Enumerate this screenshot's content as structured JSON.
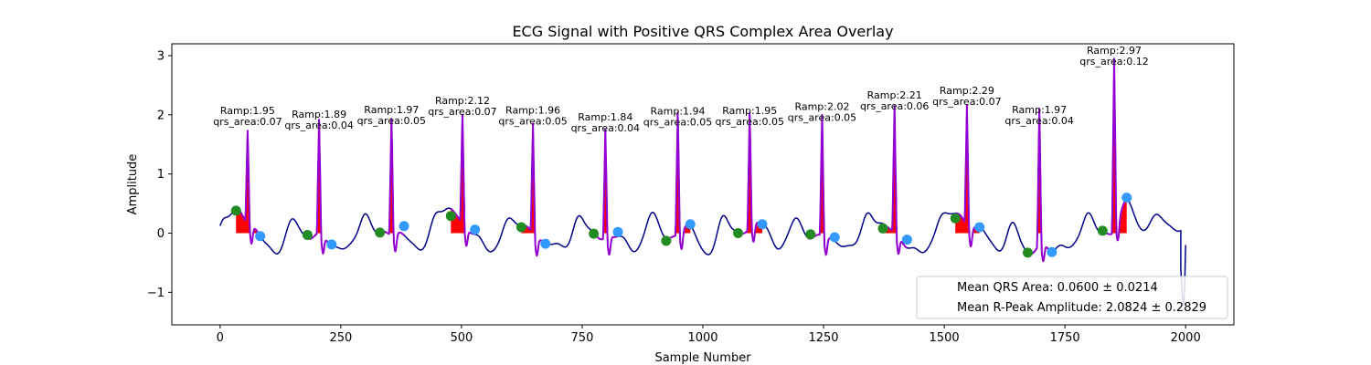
{
  "chart_data": {
    "type": "line",
    "title": "ECG Signal with Positive QRS Complex Area Overlay",
    "xlabel": "Sample Number",
    "ylabel": "Amplitude",
    "xlim": [
      -100,
      2100
    ],
    "ylim": [
      -1.55,
      3.2
    ],
    "xticks": [
      0,
      250,
      500,
      750,
      1000,
      1250,
      1500,
      1750,
      2000
    ],
    "yticks": [
      -1,
      0,
      1,
      2,
      3
    ],
    "xtick_labels": [
      "0",
      "250",
      "500",
      "750",
      "1000",
      "1250",
      "1500",
      "1750",
      "2000"
    ],
    "ytick_labels": [
      "−1",
      "0",
      "1",
      "2",
      "3"
    ],
    "colors": {
      "signal": "#00008b",
      "qrs_segment": "#9400d3",
      "qrs_area": "#ff0000",
      "onset_marker": "#228b22",
      "offset_marker": "#3399ff"
    },
    "beats": [
      {
        "r_sample": 57,
        "r_amp": 1.95,
        "onset": [
          33,
          0.38
        ],
        "offset": [
          83,
          -0.05
        ],
        "label_line1": "Ramp:1.95",
        "label_line2": "qrs_area:0.07"
      },
      {
        "r_sample": 205,
        "r_amp": 1.89,
        "onset": [
          181,
          -0.03
        ],
        "offset": [
          231,
          -0.19
        ],
        "label_line1": "Ramp:1.89",
        "label_line2": "qrs_area:0.04"
      },
      {
        "r_sample": 355,
        "r_amp": 1.97,
        "onset": [
          331,
          0.01
        ],
        "offset": [
          381,
          0.12
        ],
        "label_line1": "Ramp:1.97",
        "label_line2": "qrs_area:0.05"
      },
      {
        "r_sample": 502,
        "r_amp": 2.12,
        "onset": [
          478,
          0.29
        ],
        "offset": [
          528,
          0.06
        ],
        "label_line1": "Ramp:2.12",
        "label_line2": "qrs_area:0.07"
      },
      {
        "r_sample": 648,
        "r_amp": 1.96,
        "onset": [
          624,
          0.1
        ],
        "offset": [
          674,
          -0.18
        ],
        "label_line1": "Ramp:1.96",
        "label_line2": "qrs_area:0.05"
      },
      {
        "r_sample": 798,
        "r_amp": 1.84,
        "onset": [
          774,
          -0.01
        ],
        "offset": [
          824,
          0.02
        ],
        "label_line1": "Ramp:1.84",
        "label_line2": "qrs_area:0.04"
      },
      {
        "r_sample": 948,
        "r_amp": 1.94,
        "onset": [
          924,
          -0.13
        ],
        "offset": [
          974,
          0.15
        ],
        "label_line1": "Ramp:1.94",
        "label_line2": "qrs_area:0.05"
      },
      {
        "r_sample": 1097,
        "r_amp": 1.95,
        "onset": [
          1073,
          0.0
        ],
        "offset": [
          1123,
          0.15
        ],
        "label_line1": "Ramp:1.95",
        "label_line2": "qrs_area:0.05"
      },
      {
        "r_sample": 1247,
        "r_amp": 2.02,
        "onset": [
          1223,
          -0.02
        ],
        "offset": [
          1273,
          -0.07
        ],
        "label_line1": "Ramp:2.02",
        "label_line2": "qrs_area:0.05"
      },
      {
        "r_sample": 1397,
        "r_amp": 2.21,
        "onset": [
          1373,
          0.08
        ],
        "offset": [
          1423,
          -0.11
        ],
        "label_line1": "Ramp:2.21",
        "label_line2": "qrs_area:0.06"
      },
      {
        "r_sample": 1547,
        "r_amp": 2.29,
        "onset": [
          1523,
          0.25
        ],
        "offset": [
          1573,
          0.1
        ],
        "label_line1": "Ramp:2.29",
        "label_line2": "qrs_area:0.07"
      },
      {
        "r_sample": 1697,
        "r_amp": 1.97,
        "onset": [
          1673,
          -0.33
        ],
        "offset": [
          1723,
          -0.32
        ],
        "label_line1": "Ramp:1.97",
        "label_line2": "qrs_area:0.04"
      },
      {
        "r_sample": 1852,
        "r_amp": 2.97,
        "onset": [
          1828,
          0.04
        ],
        "offset": [
          1878,
          0.6
        ],
        "label_line1": "Ramp:2.97",
        "label_line2": "qrs_area:0.12"
      }
    ],
    "legend": {
      "location": "lower-right",
      "entries": [
        "Mean QRS Area: 0.0600 ± 0.0214",
        "Mean R-Peak Amplitude: 2.0824 ± 0.2829"
      ]
    }
  }
}
